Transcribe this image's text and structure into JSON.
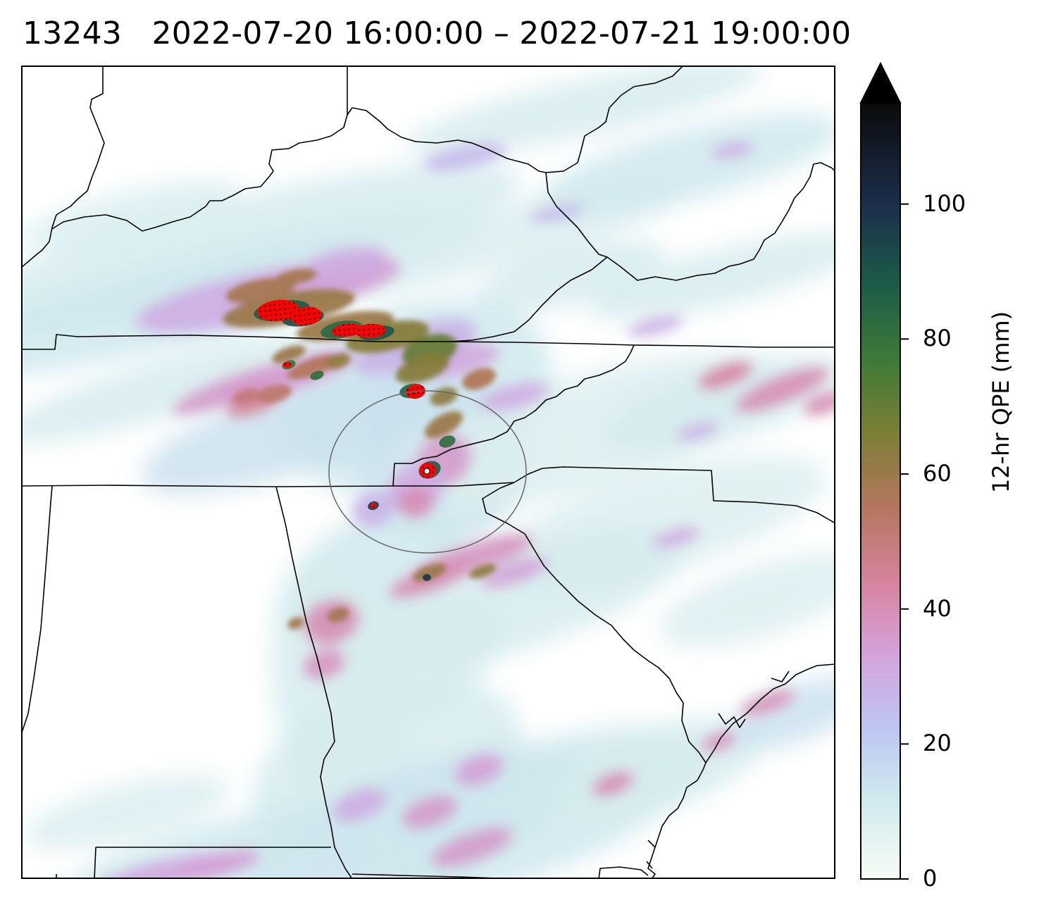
{
  "title": {
    "id": "13243",
    "start": "2022-07-20 16:00:00",
    "separator": "–",
    "end": "2022-07-21 19:00:00",
    "full": "13243   2022-07-20 16:00:00 – 2022-07-21 19:00:00"
  },
  "colorbar": {
    "label": "12-hr QPE (mm)",
    "min": 0,
    "max": 115,
    "extend": "max",
    "ticks": [
      {
        "value": 0,
        "label": "0"
      },
      {
        "value": 20,
        "label": "20"
      },
      {
        "value": 40,
        "label": "40"
      },
      {
        "value": 60,
        "label": "60"
      },
      {
        "value": 80,
        "label": "80"
      },
      {
        "value": 100,
        "label": "100"
      }
    ],
    "colormap": "cubehelix_r",
    "stops": [
      {
        "value": 0,
        "color": "#f7fcf5"
      },
      {
        "value": 12,
        "color": "#cfe9ee"
      },
      {
        "value": 22,
        "color": "#bdc6f2"
      },
      {
        "value": 33,
        "color": "#d3a4dc"
      },
      {
        "value": 44,
        "color": "#d7829e"
      },
      {
        "value": 55,
        "color": "#b5765e"
      },
      {
        "value": 66,
        "color": "#7c7f35"
      },
      {
        "value": 77,
        "color": "#3d7a37"
      },
      {
        "value": 88,
        "color": "#1c5c48"
      },
      {
        "value": 100,
        "color": "#1b2e4a"
      },
      {
        "value": 115,
        "color": "#0b0b0c"
      }
    ],
    "extend_color": "#000000"
  },
  "map": {
    "type": "precipitation-heatmap",
    "background": "#ffffff",
    "border_color": "#000000",
    "exceedance_marker_color": "#ff0000",
    "target_circle_color": "#555555",
    "target_point_color": "#ffffff"
  }
}
